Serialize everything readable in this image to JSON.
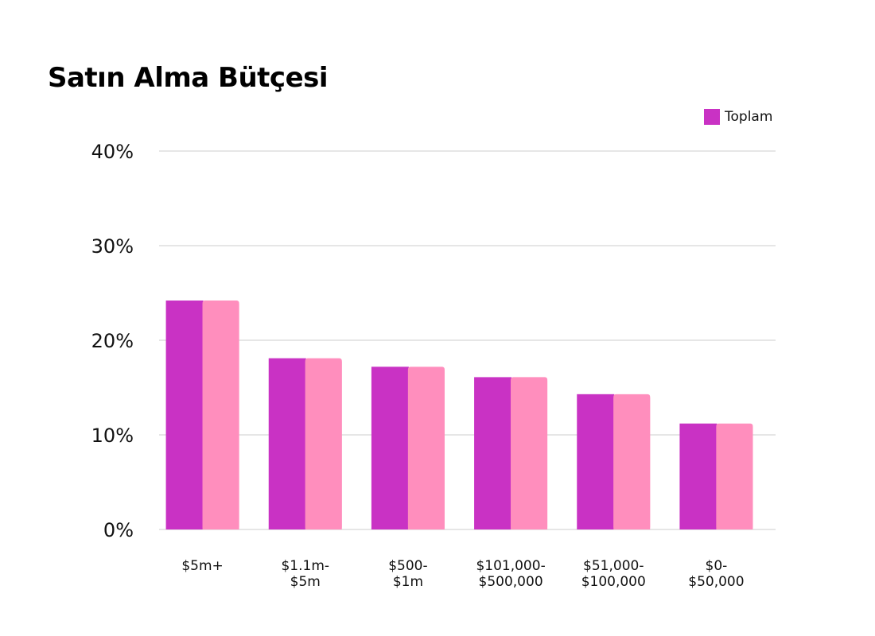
{
  "chart_data": {
    "type": "bar",
    "title": "Satın Alma Bütçesi",
    "categories": [
      [
        "$5m+"
      ],
      [
        "$1.1m-",
        "$5m"
      ],
      [
        "$500-",
        "$1m"
      ],
      [
        "$101,000-",
        "$500,000"
      ],
      [
        "$51,000-",
        "$100,000"
      ],
      [
        "$0-",
        "$50,000"
      ]
    ],
    "series": [
      {
        "name": "Toplam",
        "values": [
          24.2,
          18.1,
          17.2,
          16.1,
          14.3,
          11.2
        ]
      }
    ],
    "ylim": [
      0,
      40
    ],
    "yticks": [
      "0%",
      "10%",
      "20%",
      "30%",
      "40%"
    ],
    "ytick_values": [
      0,
      10,
      20,
      30,
      40
    ],
    "xlabel": "",
    "ylabel": "",
    "grid": true,
    "legend_position": "top-right",
    "colors": {
      "series": "#C932C4",
      "highlight": "#FF8EBD"
    }
  }
}
